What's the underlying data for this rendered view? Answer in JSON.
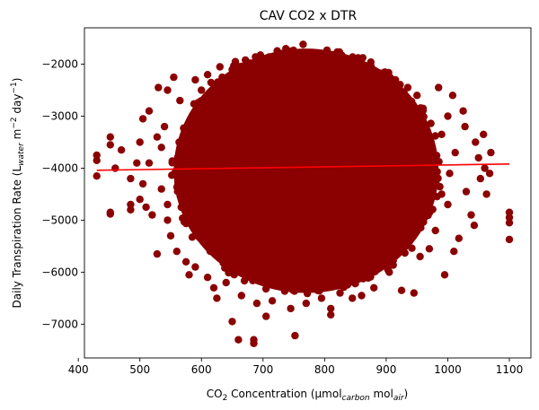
{
  "chart_data": {
    "type": "scatter",
    "title": "CAV CO2 x DTR",
    "xlabel": {
      "main": "CO",
      "main_sub": "2",
      "rest": " Concentration (µmol",
      "sub1": "carbon",
      "mid": " mol",
      "sub2": "air",
      "end": ")"
    },
    "ylabel": {
      "main": "Daily Transpiration Rate (L",
      "sub1": "water",
      "mid": " m",
      "sup1": "−2",
      "mid2": " day",
      "sup2": "−1",
      "end": ")"
    },
    "xlim": [
      410,
      1135
    ],
    "ylim": [
      -7650,
      -1300
    ],
    "x_ticks": [
      400,
      500,
      600,
      700,
      800,
      900,
      1000,
      1100
    ],
    "x_tick_labels": [
      "400",
      "500",
      "600",
      "700",
      "800",
      "900",
      "1000",
      "1100"
    ],
    "y_ticks": [
      -7000,
      -6000,
      -5000,
      -4000,
      -3000,
      -2000
    ],
    "y_tick_labels": [
      "−7000",
      "−6000",
      "−5000",
      "−4000",
      "−3000",
      "−2000"
    ],
    "grid": false,
    "point_color": "#8b0000",
    "trend_color": "#ff0000",
    "trend_line": {
      "x": [
        430,
        1100
      ],
      "y": [
        -4040,
        -3920
      ]
    },
    "points": [
      [
        430,
        -3750
      ],
      [
        430,
        -3850
      ],
      [
        430,
        -4150
      ],
      [
        452,
        -3400
      ],
      [
        452,
        -3550
      ],
      [
        452,
        -4880
      ],
      [
        452,
        -4850
      ],
      [
        460,
        -4000
      ],
      [
        470,
        -3650
      ],
      [
        485,
        -4200
      ],
      [
        485,
        -4700
      ],
      [
        485,
        -4800
      ],
      [
        500,
        -3500
      ],
      [
        505,
        -3050
      ],
      [
        515,
        -2900
      ],
      [
        530,
        -2450
      ],
      [
        528,
        -3400
      ],
      [
        528,
        -5650
      ],
      [
        535,
        -4400
      ],
      [
        545,
        -2500
      ],
      [
        545,
        -5000
      ],
      [
        555,
        -2250
      ],
      [
        560,
        -5600
      ],
      [
        565,
        -2700
      ],
      [
        575,
        -5800
      ],
      [
        580,
        -6050
      ],
      [
        590,
        -5900
      ],
      [
        590,
        -2300
      ],
      [
        600,
        -2500
      ],
      [
        610,
        -2200
      ],
      [
        610,
        -6100
      ],
      [
        620,
        -6300
      ],
      [
        625,
        -6500
      ],
      [
        630,
        -2050
      ],
      [
        640,
        -6200
      ],
      [
        650,
        -6950
      ],
      [
        655,
        -1950
      ],
      [
        660,
        -7300
      ],
      [
        665,
        -6450
      ],
      [
        675,
        -2050
      ],
      [
        685,
        -7300
      ],
      [
        685,
        -7370
      ],
      [
        690,
        -6600
      ],
      [
        695,
        -1900
      ],
      [
        705,
        -6850
      ],
      [
        715,
        -6550
      ],
      [
        720,
        -1850
      ],
      [
        735,
        -1950
      ],
      [
        745,
        -6700
      ],
      [
        752,
        -7220
      ],
      [
        760,
        -1900
      ],
      [
        765,
        -1620
      ],
      [
        770,
        -6600
      ],
      [
        785,
        -1850
      ],
      [
        795,
        -6500
      ],
      [
        810,
        -6700
      ],
      [
        810,
        -6820
      ],
      [
        820,
        -1950
      ],
      [
        825,
        -6400
      ],
      [
        840,
        -2050
      ],
      [
        845,
        -6500
      ],
      [
        860,
        -6450
      ],
      [
        865,
        -2050
      ],
      [
        880,
        -6300
      ],
      [
        890,
        -2250
      ],
      [
        905,
        -6000
      ],
      [
        915,
        -2300
      ],
      [
        925,
        -6350
      ],
      [
        935,
        -2450
      ],
      [
        945,
        -6400
      ],
      [
        950,
        -2600
      ],
      [
        960,
        -2850
      ],
      [
        970,
        -5550
      ],
      [
        985,
        -2450
      ],
      [
        990,
        -3350
      ],
      [
        995,
        -6050
      ],
      [
        1000,
        -3000
      ],
      [
        1003,
        -4100
      ],
      [
        1008,
        -2600
      ],
      [
        1012,
        -3700
      ],
      [
        1018,
        -5350
      ],
      [
        1025,
        -2900
      ],
      [
        1028,
        -3200
      ],
      [
        1030,
        -4450
      ],
      [
        1038,
        -4900
      ],
      [
        1043,
        -5100
      ],
      [
        1045,
        -3500
      ],
      [
        1050,
        -3800
      ],
      [
        1053,
        -4200
      ],
      [
        1058,
        -3350
      ],
      [
        1060,
        -4000
      ],
      [
        1063,
        -4500
      ],
      [
        1068,
        -4100
      ],
      [
        1070,
        -3700
      ],
      [
        1100,
        -4850
      ],
      [
        1100,
        -4950
      ],
      [
        1100,
        -5050
      ],
      [
        1100,
        -5370
      ],
      [
        1000,
        -4700
      ],
      [
        1010,
        -5600
      ],
      [
        990,
        -4500
      ],
      [
        980,
        -5200
      ],
      [
        975,
        -3900
      ],
      [
        965,
        -4600
      ],
      [
        955,
        -5700
      ],
      [
        520,
        -4900
      ],
      [
        515,
        -3900
      ],
      [
        505,
        -4300
      ],
      [
        510,
        -4750
      ],
      [
        540,
        -3200
      ],
      [
        550,
        -5300
      ],
      [
        545,
        -4700
      ],
      [
        535,
        -3600
      ],
      [
        500,
        -4600
      ],
      [
        495,
        -3900
      ]
    ],
    "cloud": {
      "center": [
        770,
        -4050
      ],
      "radius": [
        215,
        2350
      ]
    }
  }
}
